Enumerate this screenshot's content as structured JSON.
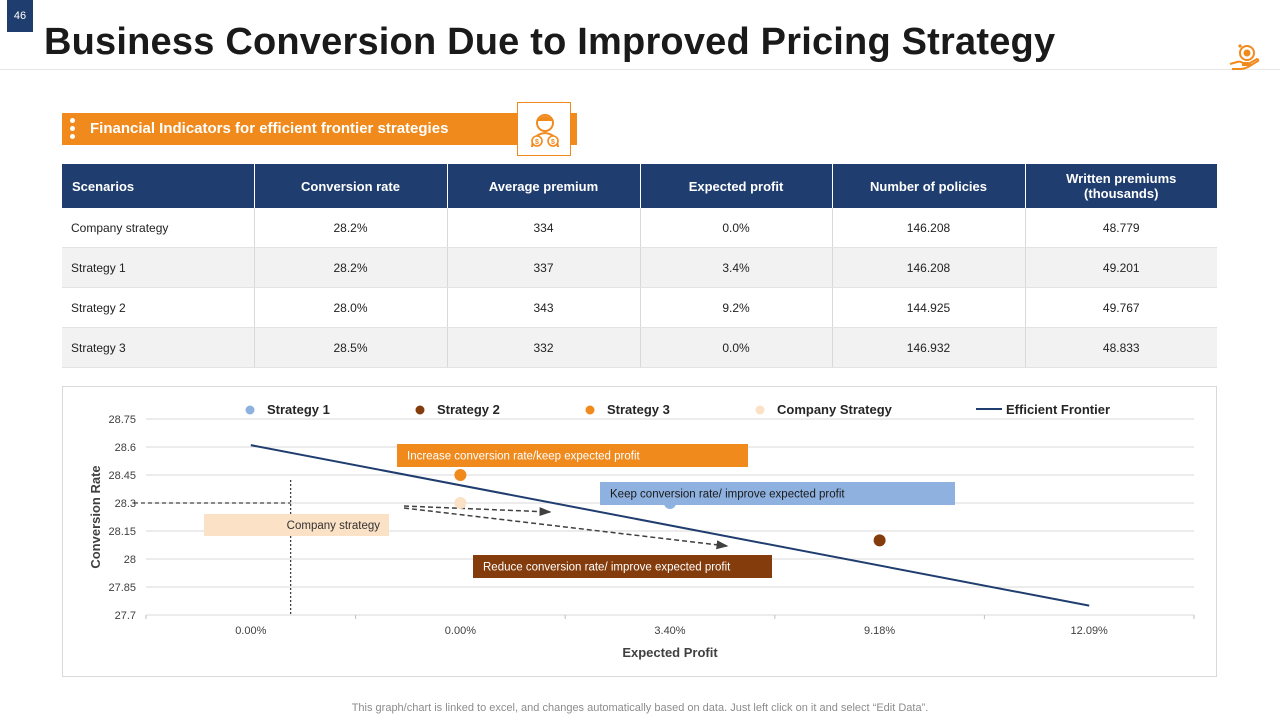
{
  "slide_number": "46",
  "title": "Business Conversion Due to Improved Pricing Strategy",
  "banner": {
    "text": "Financial Indicators for efficient frontier strategies"
  },
  "table": {
    "headers": [
      "Scenarios",
      "Conversion  rate",
      "Average premium",
      "Expected profit",
      "Number of policies",
      "Written premiums (thousands)"
    ],
    "rows": [
      [
        "Company strategy",
        "28.2%",
        "334",
        "0.0%",
        "146.208",
        "48.779"
      ],
      [
        "Strategy 1",
        "28.2%",
        "337",
        "3.4%",
        "146.208",
        "49.201"
      ],
      [
        "Strategy 2",
        "28.0%",
        "343",
        "9.2%",
        "144.925",
        "49.767"
      ],
      [
        "Strategy 3",
        "28.5%",
        "332",
        "0.0%",
        "146.932",
        "48.833"
      ]
    ]
  },
  "chart_data": {
    "type": "scatter",
    "xlabel": "Expected Profit",
    "ylabel": "Conversion Rate",
    "categories": [
      "0.00%",
      "0.00%",
      "3.40%",
      "9.18%",
      "12.09%"
    ],
    "y_ticks": [
      "28.75",
      "28.6",
      "28.45",
      "28.3",
      "28.15",
      "28",
      "27.85",
      "27.7"
    ],
    "ylim": [
      27.7,
      28.75
    ],
    "series": [
      {
        "name": "Strategy 1",
        "color": "#8eb1df",
        "points": [
          {
            "x_index": 2,
            "y": 28.3
          }
        ]
      },
      {
        "name": "Strategy 2",
        "color": "#843c0c",
        "points": [
          {
            "x_index": 3,
            "y": 28.1
          }
        ]
      },
      {
        "name": "Strategy 3",
        "color": "#f08a1d",
        "points": [
          {
            "x_index": 1,
            "y": 28.45
          }
        ]
      },
      {
        "name": "Company Strategy",
        "color": "#fbe1c5",
        "points": [
          {
            "x_index": 1,
            "y": 28.3
          }
        ]
      }
    ],
    "frontier": {
      "name": "Efficient Frontier",
      "color": "#1f3d6e",
      "points": [
        {
          "x_index": 0,
          "y": 28.61
        },
        {
          "x_index": 4,
          "y": 27.75
        }
      ]
    },
    "company_reference": {
      "x_index": 0.69,
      "y": 28.3
    },
    "annotations": [
      {
        "text": "Increase conversion rate/keep expected profit",
        "color": "#f08a1d",
        "text_color": "#ffffff"
      },
      {
        "text": "Keep conversion rate/ improve expected profit",
        "color": "#8eb1df",
        "text_color": "#1a1a1a"
      },
      {
        "text": "Company strategy",
        "color": "#fbe1c5",
        "text_color": "#333333"
      },
      {
        "text": "Reduce conversion rate/ improve expected profit",
        "color": "#843c0c",
        "text_color": "#ffffff"
      }
    ]
  },
  "footnote": "This graph/chart is linked to excel,  and changes automatically based on data. Just left click on it and select “Edit Data”."
}
